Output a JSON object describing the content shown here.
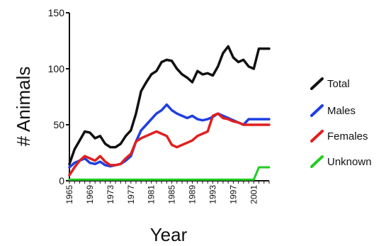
{
  "chart_data": {
    "type": "line",
    "xlabel": "Year",
    "ylabel": "# Animals",
    "xlim": [
      1965,
      2004
    ],
    "ylim": [
      0,
      150
    ],
    "y_ticks": [
      0,
      50,
      100,
      150
    ],
    "x_tick_labels": [
      "1965",
      "1969",
      "1973",
      "1977",
      "1981",
      "1985",
      "1989",
      "1993",
      "1997",
      "2001"
    ],
    "legend": {
      "placement": "right"
    },
    "colors": {
      "Total": "#111111",
      "Males": "#1f3fe0",
      "Females": "#e02020",
      "Unknown": "#22cc22"
    },
    "x": [
      1965,
      1966,
      1967,
      1968,
      1969,
      1970,
      1971,
      1972,
      1973,
      1974,
      1975,
      1976,
      1977,
      1978,
      1979,
      1980,
      1981,
      1982,
      1983,
      1984,
      1985,
      1986,
      1987,
      1988,
      1989,
      1990,
      1991,
      1992,
      1993,
      1994,
      1995,
      1996,
      1997,
      1998,
      1999,
      2000,
      2001,
      2002,
      2003,
      2004
    ],
    "series": [
      {
        "name": "Total",
        "values": [
          15,
          28,
          36,
          44,
          43,
          38,
          40,
          33,
          30,
          30,
          33,
          40,
          45,
          60,
          80,
          88,
          95,
          98,
          106,
          108,
          107,
          100,
          95,
          92,
          88,
          98,
          95,
          96,
          94,
          102,
          114,
          120,
          110,
          106,
          108,
          102,
          100,
          118,
          118,
          118
        ]
      },
      {
        "name": "Males",
        "values": [
          12,
          16,
          18,
          20,
          16,
          15,
          17,
          14,
          13,
          14,
          15,
          18,
          22,
          35,
          45,
          50,
          55,
          60,
          63,
          68,
          63,
          60,
          58,
          56,
          58,
          55,
          54,
          55,
          57,
          60,
          58,
          56,
          54,
          52,
          50,
          55,
          55,
          55,
          55,
          55
        ]
      },
      {
        "name": "Females",
        "values": [
          5,
          12,
          18,
          22,
          20,
          18,
          22,
          17,
          14,
          14,
          15,
          20,
          24,
          35,
          38,
          40,
          42,
          44,
          42,
          40,
          32,
          30,
          32,
          34,
          36,
          40,
          42,
          44,
          58,
          60,
          56,
          55,
          53,
          52,
          50,
          50,
          50,
          50,
          50,
          50
        ]
      },
      {
        "name": "Unknown",
        "values": [
          1,
          1,
          1,
          1,
          1,
          1,
          1,
          1,
          1,
          1,
          1,
          1,
          1,
          1,
          1,
          1,
          1,
          1,
          1,
          1,
          1,
          1,
          1,
          1,
          1,
          1,
          1,
          1,
          1,
          1,
          1,
          1,
          1,
          1,
          1,
          1,
          1,
          12,
          12,
          12
        ]
      }
    ]
  }
}
